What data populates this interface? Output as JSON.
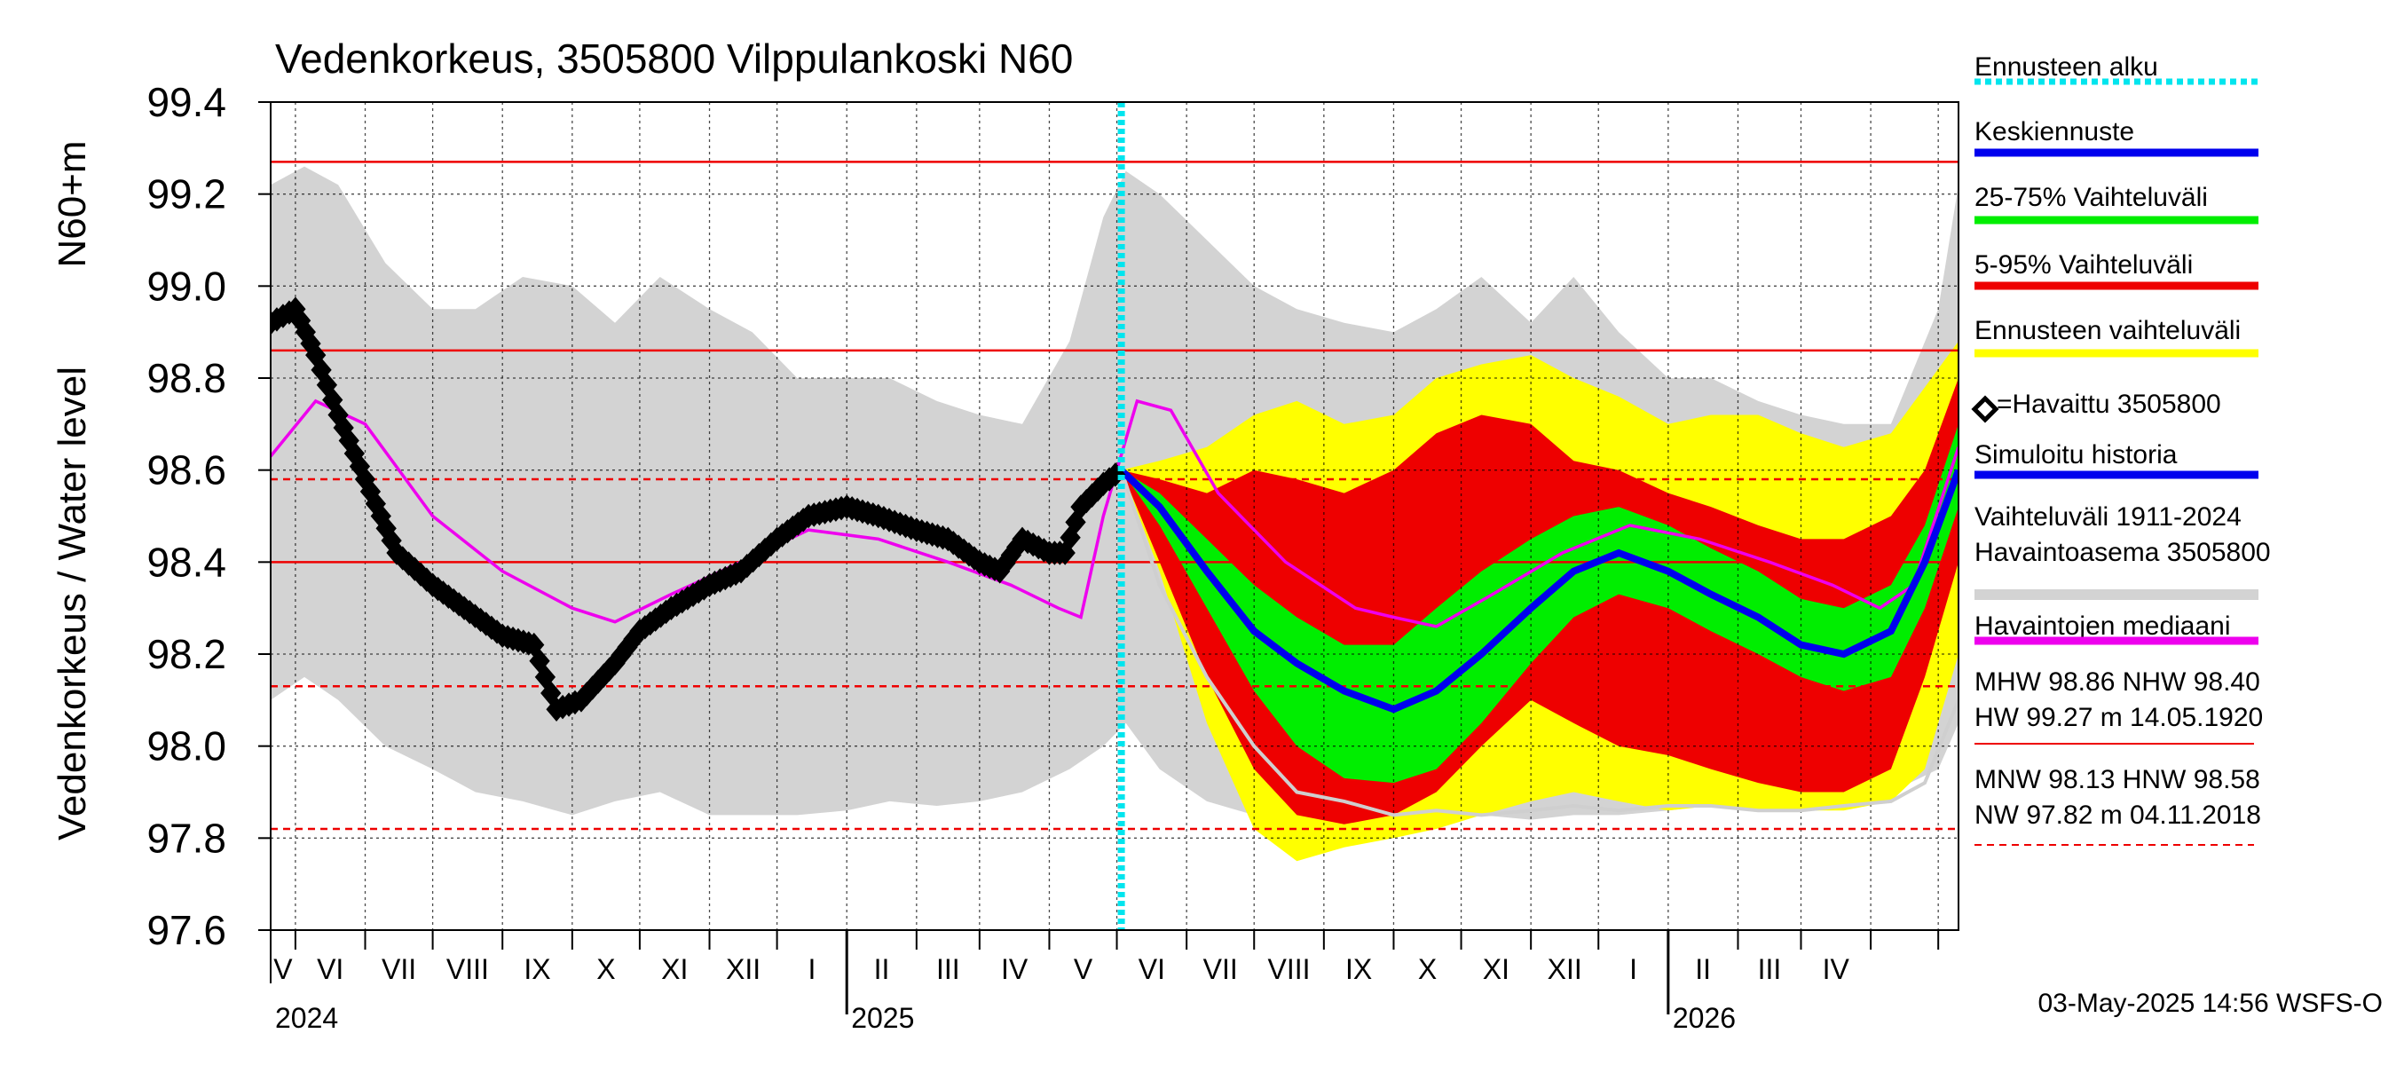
{
  "title": "Vedenkorkeus, 3505800 Vilppulankoski N60",
  "ylabel_left": "Vedenkorkeus / Water level",
  "ylabel_unit": "N60+m",
  "footer_timestamp": "03-May-2025 14:56 WSFS-O",
  "legend": [
    {
      "label": "Ennusteen alku",
      "color": "#00e5ee",
      "style": "dotted"
    },
    {
      "label": "Keskiennuste",
      "color": "#0000ee",
      "style": "solid"
    },
    {
      "label": "25-75% Vaihteluväli",
      "color": "#00ee00",
      "style": "solid"
    },
    {
      "label": "5-95% Vaihteluväli",
      "color": "#ee0000",
      "style": "solid"
    },
    {
      "label": "Ennusteen vaihteluväli",
      "color": "#ffff00",
      "style": "solid"
    },
    {
      "label": "=Havaittu 3505800",
      "color": "#000000",
      "style": "diamond"
    },
    {
      "label": "Simuloitu historia",
      "color": "#0000ee",
      "style": "solid"
    },
    {
      "label": "Vaihteluväli 1911-2024",
      "label2": " Havaintoasema 3505800",
      "color": "#d3d3d3",
      "style": "solid"
    },
    {
      "label": "Havaintojen mediaani",
      "color": "#ee00ee",
      "style": "solid"
    }
  ],
  "stats": {
    "line1": "MHW  98.86 NHW  98.40",
    "line2": "HW  99.27 m 14.05.1920",
    "line3": "MNW  98.13 HNW  98.58",
    "line4": "NW  97.82 m 04.11.2018"
  },
  "chart_data": {
    "type": "line",
    "title": "Vedenkorkeus, 3505800 Vilppulankoski N60",
    "ylabel": "Vedenkorkeus / Water level",
    "yunit": "N60+m",
    "ylim": [
      97.6,
      99.4
    ],
    "yticks": [
      97.6,
      97.8,
      98.0,
      98.2,
      98.4,
      98.6,
      98.8,
      99.0,
      99.2,
      99.4
    ],
    "xlim": [
      "2024-04-20",
      "2026-05-10"
    ],
    "forecast_start": "2025-05-03",
    "month_labels": [
      "V",
      "VI",
      "VII",
      "VIII",
      "IX",
      "X",
      "XI",
      "XII",
      "I",
      "II",
      "III",
      "IV",
      "V",
      "VI",
      "VII",
      "VIII",
      "IX",
      "X",
      "XI",
      "XII",
      "I",
      "II",
      "III",
      "IV"
    ],
    "year_labels": [
      {
        "label": "2024",
        "at": "2024-05-01"
      },
      {
        "label": "2025",
        "at": "2025-01-01"
      },
      {
        "label": "2026",
        "at": "2026-01-01"
      }
    ],
    "reference_lines": [
      {
        "name": "HW",
        "value": 99.27,
        "style": "solid"
      },
      {
        "name": "MHW",
        "value": 98.86,
        "style": "solid"
      },
      {
        "name": "HNW",
        "value": 98.58,
        "style": "dashed"
      },
      {
        "name": "NHW",
        "value": 98.4,
        "style": "solid"
      },
      {
        "name": "MNW",
        "value": 98.13,
        "style": "dashed"
      },
      {
        "name": "NW",
        "value": 97.82,
        "style": "dashed"
      }
    ],
    "historical_range": {
      "x": [
        "2024-04-20",
        "2024-05-05",
        "2024-05-20",
        "2024-06-10",
        "2024-07-01",
        "2024-07-20",
        "2024-08-10",
        "2024-09-01",
        "2024-09-20",
        "2024-10-10",
        "2024-11-01",
        "2024-11-20",
        "2024-12-10",
        "2025-01-01",
        "2025-01-20",
        "2025-02-10",
        "2025-03-01",
        "2025-03-20",
        "2025-04-10",
        "2025-04-25",
        "2025-05-05",
        "2025-05-20",
        "2025-06-10",
        "2025-07-01",
        "2025-07-20",
        "2025-08-10",
        "2025-09-01",
        "2025-09-20",
        "2025-10-10",
        "2025-11-01",
        "2025-11-20",
        "2025-12-10",
        "2026-01-01",
        "2026-01-20",
        "2026-02-10",
        "2026-03-01",
        "2026-03-20",
        "2026-04-10",
        "2026-05-01",
        "2026-05-10"
      ],
      "upper": [
        99.22,
        99.26,
        99.22,
        99.05,
        98.95,
        98.95,
        99.02,
        99.0,
        98.92,
        99.02,
        98.95,
        98.9,
        98.8,
        98.8,
        98.8,
        98.75,
        98.72,
        98.7,
        98.88,
        99.15,
        99.25,
        99.2,
        99.1,
        99.0,
        98.95,
        98.92,
        98.9,
        98.95,
        99.02,
        98.92,
        99.02,
        98.9,
        98.8,
        98.8,
        98.75,
        98.72,
        98.7,
        98.7,
        98.95,
        99.22
      ],
      "lower": [
        98.1,
        98.15,
        98.1,
        98.0,
        97.95,
        97.9,
        97.88,
        97.85,
        97.88,
        97.9,
        97.85,
        97.85,
        97.85,
        97.86,
        97.88,
        97.87,
        97.88,
        97.9,
        97.95,
        98.0,
        98.05,
        97.95,
        97.88,
        97.85,
        97.83,
        97.82,
        97.84,
        97.85,
        97.85,
        97.84,
        97.85,
        97.85,
        97.86,
        97.87,
        97.87,
        97.88,
        97.88,
        97.9,
        97.95,
        98.05
      ]
    },
    "median": {
      "x": [
        "2024-04-20",
        "2024-05-10",
        "2024-06-01",
        "2024-07-01",
        "2024-08-01",
        "2024-09-01",
        "2024-09-20",
        "2024-10-15",
        "2024-11-15",
        "2024-12-15",
        "2025-01-15",
        "2025-02-15",
        "2025-03-15",
        "2025-04-05",
        "2025-04-15",
        "2025-04-25",
        "2025-05-10",
        "2025-05-25",
        "2025-06-15",
        "2025-07-15",
        "2025-08-15",
        "2025-09-01",
        "2025-09-20",
        "2025-10-15",
        "2025-11-15",
        "2025-12-15",
        "2026-01-15",
        "2026-02-15",
        "2026-03-15",
        "2026-04-05",
        "2026-04-20",
        "2026-05-10"
      ],
      "values": [
        98.63,
        98.75,
        98.7,
        98.5,
        98.38,
        98.3,
        98.27,
        98.33,
        98.4,
        98.47,
        98.45,
        98.4,
        98.35,
        98.3,
        98.28,
        98.5,
        98.75,
        98.73,
        98.55,
        98.4,
        98.3,
        98.28,
        98.26,
        98.33,
        98.42,
        98.48,
        98.45,
        98.4,
        98.35,
        98.3,
        98.35,
        98.65
      ]
    },
    "observed": {
      "x": [
        "2024-04-20",
        "2024-05-01",
        "2024-05-10",
        "2024-05-20",
        "2024-06-01",
        "2024-06-15",
        "2024-07-01",
        "2024-07-15",
        "2024-08-01",
        "2024-08-15",
        "2024-08-25",
        "2024-09-05",
        "2024-09-20",
        "2024-10-01",
        "2024-10-15",
        "2024-11-01",
        "2024-11-15",
        "2024-12-01",
        "2024-12-15",
        "2025-01-01",
        "2025-01-15",
        "2025-02-01",
        "2025-02-15",
        "2025-03-01",
        "2025-03-10",
        "2025-03-20",
        "2025-04-01",
        "2025-04-08",
        "2025-04-15",
        "2025-04-25",
        "2025-05-03"
      ],
      "values": [
        98.92,
        98.95,
        98.85,
        98.72,
        98.58,
        98.42,
        98.35,
        98.3,
        98.24,
        98.22,
        98.08,
        98.1,
        98.18,
        98.25,
        98.3,
        98.35,
        98.38,
        98.45,
        98.5,
        98.52,
        98.5,
        98.47,
        98.45,
        98.4,
        98.38,
        98.45,
        98.42,
        98.42,
        98.52,
        98.57,
        98.6
      ]
    },
    "forecast": {
      "x": [
        "2025-05-03",
        "2025-05-20",
        "2025-06-10",
        "2025-07-01",
        "2025-07-20",
        "2025-08-10",
        "2025-09-01",
        "2025-09-20",
        "2025-10-10",
        "2025-11-01",
        "2025-11-20",
        "2025-12-10",
        "2026-01-01",
        "2026-01-20",
        "2026-02-10",
        "2026-03-01",
        "2026-03-20",
        "2026-04-10",
        "2026-04-25",
        "2026-05-10"
      ],
      "mean": [
        98.6,
        98.52,
        98.38,
        98.25,
        98.18,
        98.12,
        98.08,
        98.12,
        98.2,
        98.3,
        98.38,
        98.42,
        98.38,
        98.33,
        98.28,
        98.22,
        98.2,
        98.25,
        98.4,
        98.6
      ],
      "p25": [
        98.6,
        98.48,
        98.3,
        98.12,
        98.0,
        97.93,
        97.92,
        97.95,
        98.05,
        98.18,
        98.28,
        98.33,
        98.3,
        98.25,
        98.2,
        98.15,
        98.12,
        98.15,
        98.3,
        98.52
      ],
      "p75": [
        98.6,
        98.55,
        98.45,
        98.35,
        98.28,
        98.22,
        98.22,
        98.3,
        98.38,
        98.45,
        98.5,
        98.52,
        98.48,
        98.43,
        98.38,
        98.32,
        98.3,
        98.35,
        98.48,
        98.7
      ],
      "p5": [
        98.6,
        98.4,
        98.15,
        97.95,
        97.85,
        97.83,
        97.85,
        97.9,
        98.0,
        98.1,
        98.05,
        98.0,
        97.98,
        97.95,
        97.92,
        97.9,
        97.9,
        97.95,
        98.15,
        98.4
      ],
      "p95": [
        98.6,
        98.58,
        98.55,
        98.6,
        98.58,
        98.55,
        98.6,
        98.68,
        98.72,
        98.7,
        98.62,
        98.6,
        98.55,
        98.52,
        98.48,
        98.45,
        98.45,
        98.5,
        98.6,
        98.8
      ],
      "min": [
        98.6,
        98.38,
        98.05,
        97.82,
        97.75,
        97.78,
        97.8,
        97.82,
        97.85,
        97.88,
        97.9,
        97.88,
        97.86,
        97.87,
        97.86,
        97.86,
        97.86,
        97.88,
        97.95,
        98.2
      ],
      "max": [
        98.6,
        98.62,
        98.65,
        98.72,
        98.75,
        98.7,
        98.72,
        98.8,
        98.83,
        98.85,
        98.8,
        98.76,
        98.7,
        98.72,
        98.72,
        98.68,
        98.65,
        98.68,
        98.78,
        98.88
      ],
      "dry_member": [
        98.6,
        98.35,
        98.15,
        98.0,
        97.9,
        97.88,
        97.85,
        97.86,
        97.85,
        97.86,
        97.87,
        97.86,
        97.87,
        97.87,
        97.86,
        97.86,
        97.87,
        97.88,
        97.92,
        98.1
      ]
    }
  }
}
